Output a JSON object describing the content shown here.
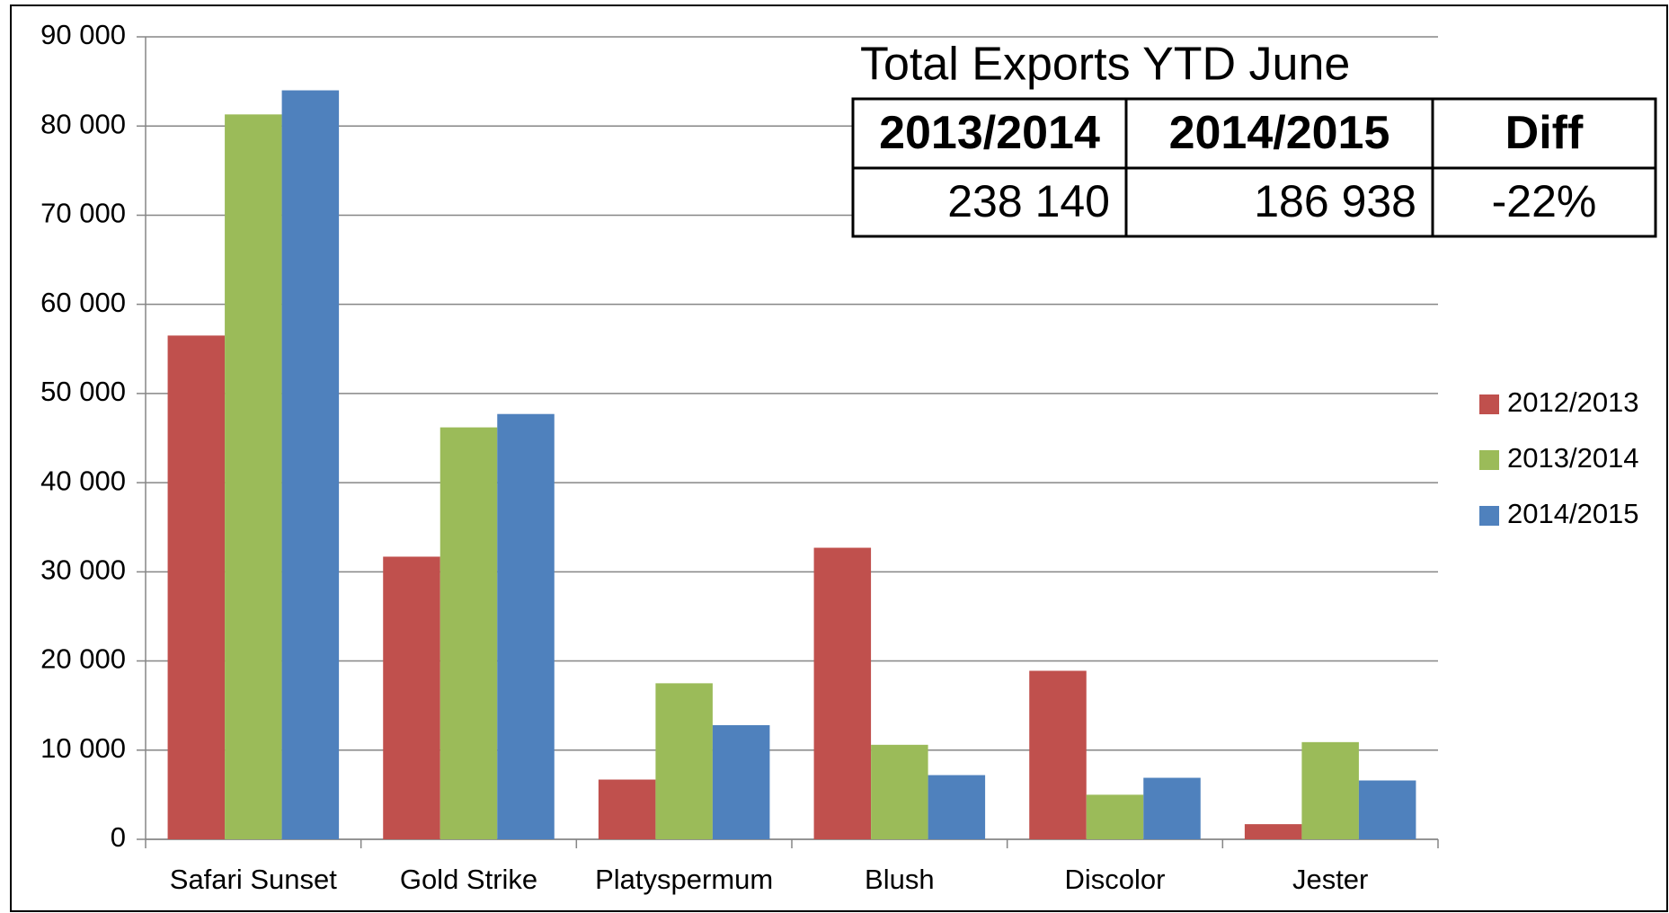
{
  "chart_data": {
    "type": "bar",
    "categories": [
      "Safari Sunset",
      "Gold Strike",
      "Platyspermum",
      "Blush",
      "Discolor",
      "Jester"
    ],
    "series": [
      {
        "name": "2012/2013",
        "color": "#c0504d",
        "values": [
          56500,
          31700,
          6700,
          32700,
          18900,
          1700
        ]
      },
      {
        "name": "2013/2014",
        "color": "#9bbb59",
        "values": [
          81300,
          46200,
          17500,
          10600,
          5000,
          10900
        ]
      },
      {
        "name": "2014/2015",
        "color": "#4f81bd",
        "values": [
          84000,
          47700,
          12800,
          7200,
          6900,
          6600
        ]
      }
    ],
    "ylim": [
      0,
      90000
    ],
    "yticks": [
      0,
      {
        "value": 10000,
        "label": "10 000"
      },
      {
        "value": 20000,
        "label": "20 000"
      },
      {
        "value": 30000,
        "label": "30 000"
      },
      {
        "value": 40000,
        "label": "40 000"
      },
      {
        "value": 50000,
        "label": "50 000"
      },
      {
        "value": 60000,
        "label": "60 000"
      },
      {
        "value": 70000,
        "label": "70 000"
      },
      {
        "value": 80000,
        "label": "80 000"
      },
      {
        "value": 90000,
        "label": "90 000"
      }
    ],
    "grid": true,
    "legend": "right",
    "table": {
      "title": "Total Exports YTD June",
      "headers": [
        "2013/2014",
        "2014/2015",
        "Diff"
      ],
      "rows": [
        [
          "238 140",
          "186 938",
          "-22%"
        ]
      ]
    }
  }
}
